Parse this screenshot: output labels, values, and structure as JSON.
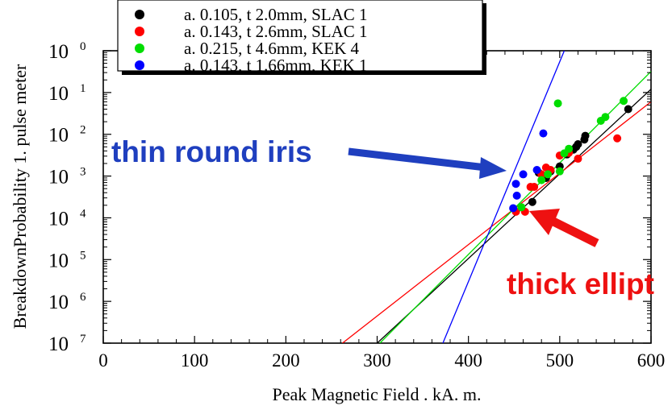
{
  "chart_data": {
    "type": "scatter",
    "xlabel": "Peak Magnetic Field . kA. m.",
    "ylabel": "BreakdownProbability 1. pulse meter",
    "xlim": [
      0,
      600
    ],
    "ylim_exponent": [
      -7,
      0
    ],
    "y_scale": "log",
    "x_ticks": [
      "0",
      "100",
      "200",
      "300",
      "400",
      "500",
      "600"
    ],
    "y_ticks": [
      {
        "base": "10",
        "exp": "0",
        "value": 1
      },
      {
        "base": "10",
        "exp": "1",
        "value": 0.1
      },
      {
        "base": "10",
        "exp": "2",
        "value": 0.01
      },
      {
        "base": "10",
        "exp": "3",
        "value": 0.001
      },
      {
        "base": "10",
        "exp": "4",
        "value": 0.0001
      },
      {
        "base": "10",
        "exp": "5",
        "value": 1e-05
      },
      {
        "base": "10",
        "exp": "6",
        "value": 1e-06
      },
      {
        "base": "10",
        "exp": "7",
        "value": 1e-07
      }
    ],
    "grid": false,
    "legend_position": "top",
    "series": [
      {
        "name": "a. 0.105, t 2.0mm, SLAC 1",
        "color": "#000000",
        "points": [
          [
            470,
            0.00024
          ],
          [
            477,
            0.0012
          ],
          [
            485,
            0.0009
          ],
          [
            490,
            0.0013
          ],
          [
            500,
            0.0017
          ],
          [
            508,
            0.0033
          ],
          [
            515,
            0.0043
          ],
          [
            518,
            0.005
          ],
          [
            520,
            0.0058
          ],
          [
            527,
            0.0075
          ],
          [
            528,
            0.0092
          ],
          [
            575,
            0.04
          ]
        ],
        "fit_line": [
          [
            300,
            1e-07
          ],
          [
            600,
            0.12
          ]
        ]
      },
      {
        "name": "a. 0.143, t 2.6mm, SLAC 1",
        "color": "#ff0000",
        "points": [
          [
            452,
            0.00014
          ],
          [
            462,
            0.00014
          ],
          [
            468,
            0.00055
          ],
          [
            472,
            0.00055
          ],
          [
            480,
            0.0011
          ],
          [
            485,
            0.0016
          ],
          [
            490,
            0.0014
          ],
          [
            500,
            0.0031
          ],
          [
            510,
            0.0036
          ],
          [
            520,
            0.0026
          ],
          [
            563,
            0.008
          ]
        ],
        "fit_line": [
          [
            262,
            1e-07
          ],
          [
            600,
            0.06
          ]
        ]
      },
      {
        "name": "a. 0.215, t 4.6mm, KEK 4",
        "color": "#00dd00",
        "points": [
          [
            458,
            0.00018
          ],
          [
            480,
            0.0008
          ],
          [
            487,
            0.0011
          ],
          [
            500,
            0.0013
          ],
          [
            505,
            0.0035
          ],
          [
            510,
            0.0045
          ],
          [
            498,
            0.055
          ],
          [
            545,
            0.021
          ],
          [
            550,
            0.026
          ],
          [
            570,
            0.063
          ]
        ],
        "fit_line": [
          [
            303,
            1e-07
          ],
          [
            600,
            0.32
          ]
        ]
      },
      {
        "name": "a. 0.143, t 1.66mm, KEK 1",
        "color": "#0000ff",
        "points": [
          [
            449,
            0.00017
          ],
          [
            453,
            0.00034
          ],
          [
            452,
            0.00065
          ],
          [
            460,
            0.0011
          ],
          [
            475,
            0.0014
          ],
          [
            482,
            0.0105
          ]
        ],
        "fit_line": [
          [
            372,
            1e-07
          ],
          [
            505,
            1.0
          ]
        ]
      }
    ],
    "annotations": [
      {
        "text": "thin round iris",
        "color": "#1f3fbf"
      },
      {
        "text": "thick ellipt",
        "color": "#ee1111"
      }
    ]
  }
}
